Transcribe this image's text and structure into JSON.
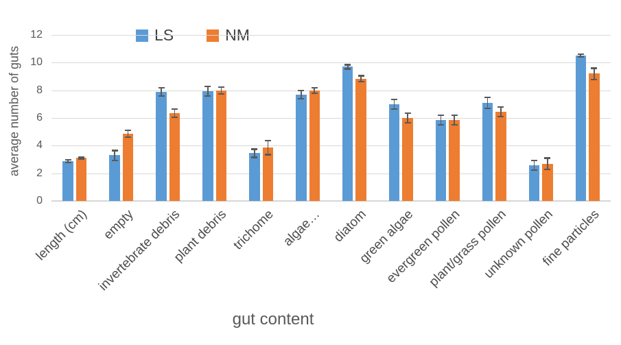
{
  "chart_data": {
    "type": "bar",
    "title": "",
    "xlabel": "gut content",
    "ylabel": "average number of guts",
    "categories": [
      "length (cm)",
      "empty",
      "invertebrate debris",
      "plant debris",
      "trichome",
      "algae…",
      "diatom",
      "green algae",
      "evergreen pollen",
      "plant/grass pollen",
      "unknown pollen",
      "fine particles"
    ],
    "series": [
      {
        "name": "LS",
        "color": "#5b9bd5",
        "values": [
          2.9,
          3.3,
          7.9,
          7.95,
          3.45,
          7.7,
          9.7,
          7.0,
          5.85,
          7.1,
          2.6,
          10.5
        ],
        "errors": [
          0.1,
          0.35,
          0.3,
          0.35,
          0.3,
          0.3,
          0.15,
          0.35,
          0.35,
          0.4,
          0.35,
          0.1
        ]
      },
      {
        "name": "NM",
        "color": "#ed7d31",
        "values": [
          3.1,
          4.85,
          6.35,
          8.0,
          3.85,
          8.0,
          8.85,
          6.0,
          5.85,
          6.45,
          2.7,
          9.2
        ],
        "errors": [
          0.05,
          0.25,
          0.3,
          0.25,
          0.5,
          0.2,
          0.2,
          0.35,
          0.35,
          0.35,
          0.4,
          0.4
        ]
      }
    ],
    "ylim": [
      0,
      12
    ],
    "yticks": [
      0,
      2,
      4,
      6,
      8,
      10,
      12
    ],
    "grid": true,
    "legend_position": "top-center",
    "error_bars": true,
    "colors": {
      "gridline": "#d9d9d9",
      "axis_line": "#d6d6d6",
      "error_bar": "#595959",
      "tick_text": "#595959",
      "category_text": "#4d4d4d",
      "legend_text": "#404040"
    }
  }
}
